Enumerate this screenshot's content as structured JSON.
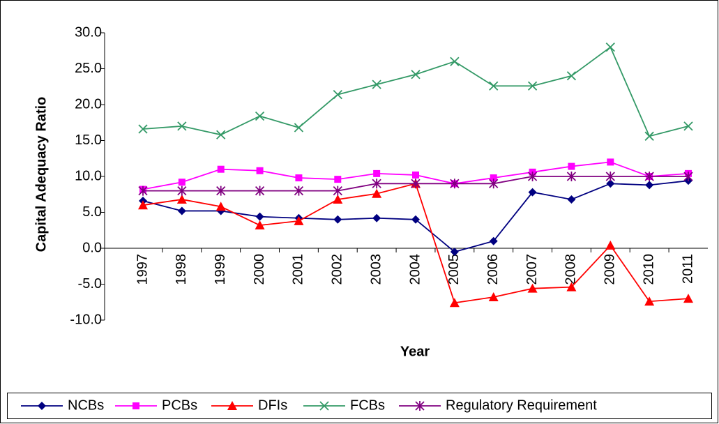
{
  "chart_data": {
    "type": "line",
    "x_label": "Year",
    "y_label": "Capital Adequacy Ratio",
    "categories": [
      "1997",
      "1998",
      "1999",
      "2000",
      "2001",
      "2002",
      "2003",
      "2004",
      "2005",
      "2006",
      "2007",
      "2008",
      "2009",
      "2010",
      "2011"
    ],
    "series": [
      {
        "name": "NCBs",
        "color": "#000080",
        "marker": "diamond",
        "values": [
          6.6,
          5.2,
          5.2,
          4.4,
          4.2,
          4.0,
          4.2,
          4.0,
          -0.5,
          1.0,
          7.8,
          6.8,
          9.0,
          8.8,
          9.4
        ]
      },
      {
        "name": "PCBs",
        "color": "#ff00ff",
        "marker": "square",
        "values": [
          8.2,
          9.2,
          11.0,
          10.8,
          9.8,
          9.6,
          10.4,
          10.2,
          9.0,
          9.8,
          10.6,
          11.4,
          12.0,
          10.0,
          10.4
        ]
      },
      {
        "name": "DFIs",
        "color": "#ff0000",
        "marker": "triangle",
        "values": [
          6.0,
          6.8,
          5.8,
          3.2,
          3.8,
          6.8,
          7.6,
          9.0,
          -7.6,
          -6.8,
          -5.6,
          -5.4,
          0.4,
          -7.4,
          -7.0
        ]
      },
      {
        "name": "FCBs",
        "color": "#339966",
        "marker": "x",
        "values": [
          16.6,
          17.0,
          15.8,
          18.4,
          16.8,
          21.4,
          22.8,
          24.2,
          26.0,
          22.6,
          22.6,
          24.0,
          28.0,
          15.6,
          17.0
        ]
      },
      {
        "name": "Regulatory Requirement",
        "color": "#800080",
        "marker": "star",
        "values": [
          8,
          8,
          8,
          8,
          8,
          8,
          9,
          9,
          9,
          9,
          10,
          10,
          10,
          10,
          10
        ]
      }
    ],
    "ylim": [
      -10,
      30
    ],
    "yticks": [
      {
        "value": -10,
        "label": "-10.0"
      },
      {
        "value": -5,
        "label": "-5.0"
      },
      {
        "value": 0,
        "label": "0.0"
      },
      {
        "value": 5,
        "label": "5.0"
      },
      {
        "value": 10,
        "label": "10.0"
      },
      {
        "value": 15,
        "label": "15.0"
      },
      {
        "value": 20,
        "label": "20.0"
      },
      {
        "value": 25,
        "label": "25.0"
      },
      {
        "value": 30,
        "label": "30.0"
      }
    ],
    "legend": "bottom"
  }
}
